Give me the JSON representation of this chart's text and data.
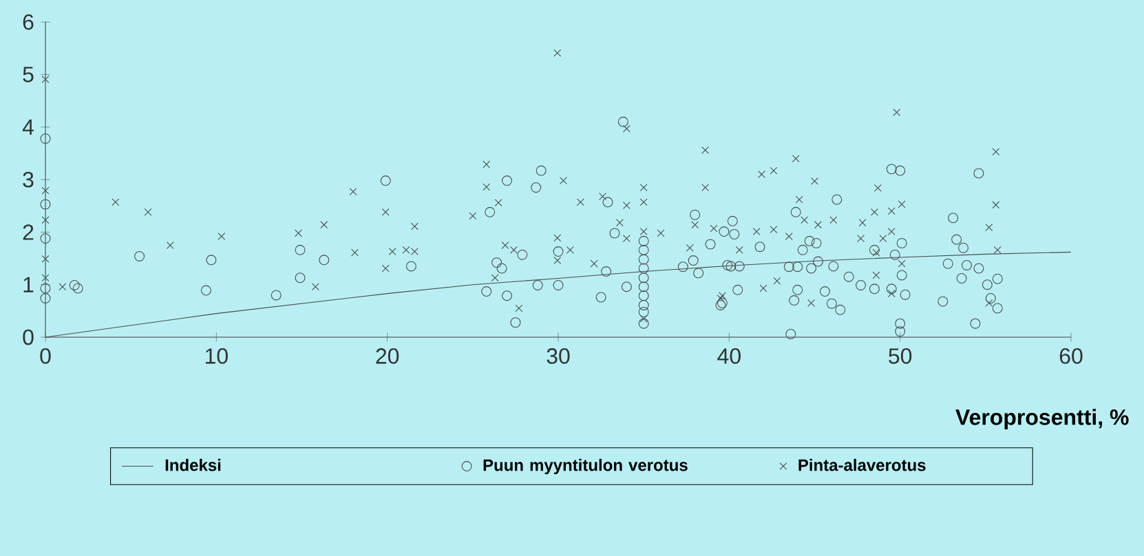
{
  "chart_data": {
    "type": "scatter",
    "xlabel": "Veroprosentti, %",
    "xlim": [
      0,
      60
    ],
    "ylim": [
      0,
      6
    ],
    "xticks": [
      0,
      10,
      20,
      30,
      40,
      50,
      60
    ],
    "yticks": [
      0,
      1,
      2,
      3,
      4,
      5,
      6
    ],
    "legend": "bottom",
    "series": [
      {
        "name": "Indeksi",
        "type": "line",
        "marker": "none",
        "color": "#4a4a4a",
        "x": [
          0,
          10,
          20,
          25,
          30,
          35,
          40,
          45,
          50,
          55,
          60
        ],
        "values": [
          0,
          0.45,
          0.83,
          1.0,
          1.12,
          1.25,
          1.36,
          1.45,
          1.52,
          1.58,
          1.62
        ]
      },
      {
        "name": "Puun myyntitulon verotus",
        "type": "scatter",
        "marker": "circle",
        "color": "#4a4a4a",
        "x": [
          0,
          0,
          0,
          0,
          0,
          1.7,
          1.9,
          5.5,
          9.4,
          9.7,
          13.5,
          14.9,
          14.9,
          16.3,
          19.9,
          21.4,
          27.0,
          26.0,
          26.4,
          26.7,
          25.8,
          27.0,
          27.5,
          27.9,
          29.0,
          28.7,
          28.8,
          30.0,
          30.0,
          32.9,
          33.3,
          33.8,
          32.8,
          32.5,
          34.0,
          35,
          35,
          35,
          35,
          35,
          35,
          35,
          35,
          35,
          35,
          37.3,
          37.9,
          38.2,
          38.9,
          38.0,
          39.9,
          39.6,
          49.5,
          50.0,
          54.6,
          46.3,
          40.2,
          43.9,
          53.1,
          39.7,
          40.3,
          41.8,
          44.7,
          45.1,
          44.3,
          53.3,
          53.7,
          50.1,
          48.5,
          49.7,
          40.1,
          40.6,
          43.5,
          44.0,
          44.8,
          45.2,
          46.1,
          47.0,
          47.7,
          48.5,
          49.5,
          50.1,
          50.3,
          52.8,
          53.6,
          53.9,
          54.6,
          55.1,
          55.7,
          55.3,
          55.7,
          52.5,
          54.4,
          50.0,
          50.0,
          43.6,
          40.5,
          44.0,
          43.8,
          45.6,
          46.0,
          46.5,
          39.5
        ],
        "values": [
          3.78,
          2.53,
          1.88,
          0.93,
          0.74,
          0.99,
          0.93,
          1.54,
          0.89,
          1.47,
          0.8,
          1.66,
          1.13,
          1.47,
          2.98,
          1.35,
          2.98,
          2.38,
          1.42,
          1.31,
          0.87,
          0.79,
          0.28,
          1.57,
          3.17,
          2.85,
          0.99,
          0.99,
          1.63,
          2.57,
          1.98,
          4.1,
          1.25,
          0.76,
          0.96,
          1.83,
          1.66,
          1.48,
          1.31,
          1.13,
          0.96,
          0.79,
          0.61,
          0.48,
          0.26,
          1.34,
          1.46,
          1.22,
          1.77,
          2.33,
          1.37,
          0.65,
          3.2,
          3.17,
          3.12,
          2.62,
          2.21,
          2.38,
          2.27,
          2.01,
          1.96,
          1.72,
          1.83,
          1.79,
          1.66,
          1.86,
          1.7,
          1.79,
          1.66,
          1.57,
          1.35,
          1.35,
          1.34,
          1.34,
          1.31,
          1.44,
          1.35,
          1.15,
          0.99,
          0.92,
          0.92,
          1.18,
          0.81,
          1.4,
          1.12,
          1.37,
          1.31,
          1.0,
          1.11,
          0.74,
          0.55,
          0.68,
          0.26,
          0.26,
          0.11,
          0.06,
          0.9,
          0.9,
          0.7,
          0.87,
          0.64,
          0.52,
          0.61
        ]
      },
      {
        "name": "Pinta-alaverotus",
        "type": "scatter",
        "marker": "cross",
        "color": "#4a4a4a",
        "x": [
          0,
          0,
          0,
          0,
          0,
          1.0,
          4.1,
          6.0,
          7.3,
          10.3,
          14.8,
          16.3,
          15.8,
          18.0,
          18.1,
          29.95,
          19.9,
          19.9,
          20.3,
          21.1,
          21.6,
          21.6,
          25.0,
          25.8,
          25.8,
          26.5,
          26.9,
          27.4,
          26.3,
          27.7,
          30.3,
          29.95,
          30.7,
          29.95,
          31.3,
          32.6,
          34.0,
          34.0,
          33.6,
          34.0,
          32.1,
          35,
          35,
          35,
          35,
          36.0,
          38.6,
          38.6,
          38.0,
          39.1,
          37.7,
          39.6,
          49.8,
          55.6,
          41.9,
          42.6,
          43.9,
          45.0,
          44.1,
          48.7,
          55.6,
          50.1,
          55.2,
          41.6,
          42.6,
          43.5,
          44.4,
          45.2,
          46.1,
          47.8,
          48.5,
          47.7,
          49.5,
          49.5,
          49.0,
          55.7,
          40.6,
          48.6,
          48.6,
          50.1,
          42.0,
          42.8,
          44.8,
          49.5,
          55.2,
          39.5
        ],
        "values": [
          4.91,
          2.79,
          2.23,
          1.49,
          1.13,
          0.96,
          2.57,
          2.38,
          1.75,
          1.92,
          1.98,
          2.14,
          0.96,
          2.77,
          1.61,
          5.41,
          2.38,
          1.31,
          1.63,
          1.66,
          1.63,
          2.11,
          2.31,
          3.29,
          2.86,
          2.56,
          1.75,
          1.66,
          1.13,
          0.55,
          2.98,
          1.89,
          1.66,
          1.46,
          2.57,
          2.68,
          2.51,
          3.97,
          2.18,
          1.88,
          1.4,
          2.85,
          2.57,
          2.01,
          0.35,
          1.98,
          3.56,
          2.85,
          2.14,
          2.07,
          1.7,
          0.79,
          4.28,
          3.53,
          3.1,
          3.17,
          3.4,
          2.97,
          2.62,
          2.84,
          2.52,
          2.53,
          2.09,
          2.01,
          2.05,
          1.92,
          2.23,
          2.14,
          2.23,
          2.18,
          2.38,
          1.88,
          2.4,
          2.01,
          1.88,
          1.66,
          1.66,
          1.61,
          1.18,
          1.4,
          0.93,
          1.07,
          0.65,
          0.83,
          0.65,
          0.74
        ]
      }
    ]
  }
}
